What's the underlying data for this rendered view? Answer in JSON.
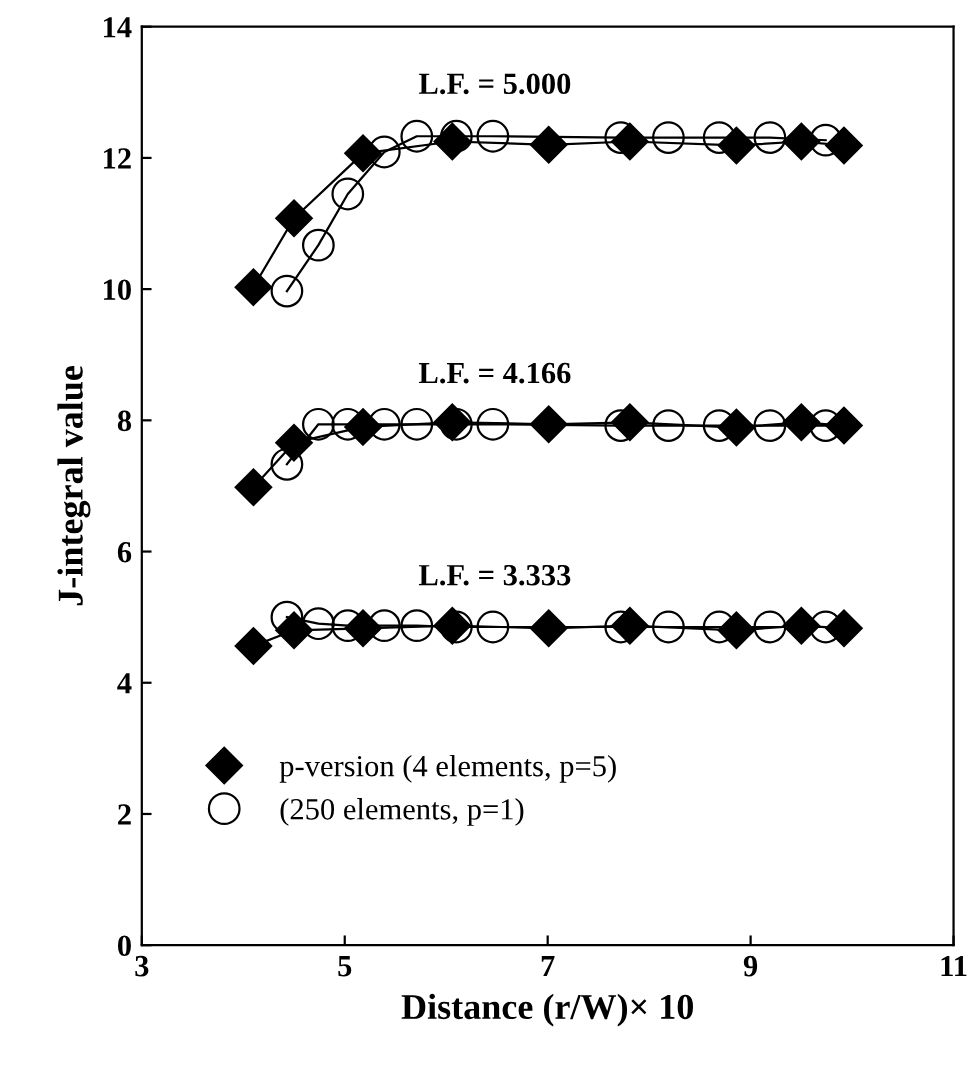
{
  "chart_data": {
    "type": "line",
    "xlabel": "Distance (r/W)× 10",
    "ylabel": "J-integral value",
    "xlim": [
      3,
      11
    ],
    "ylim": [
      0,
      14
    ],
    "xticks": [
      3,
      5,
      7,
      9,
      11
    ],
    "yticks": [
      0,
      2,
      4,
      6,
      8,
      10,
      12,
      14
    ],
    "grid": false,
    "legend": "bottom left",
    "series": [
      {
        "name": "p-version (4 elements, p=5)",
        "color": "#000000",
        "marker": "diamond",
        "x": [
          4.1,
          4.5,
          5.18,
          6.06,
          7.01,
          7.81,
          8.86,
          9.5,
          9.92
        ],
        "values": [
          10.03,
          11.08,
          12.07,
          12.25,
          12.2,
          12.25,
          12.19,
          12.25,
          12.19
        ]
      },
      {
        "name": "(250 elements, p=1)",
        "color": "#000000",
        "marker": "circle",
        "x": [
          4.43,
          4.74,
          5.03,
          5.39,
          5.71,
          6.1,
          6.46,
          7.72,
          8.19,
          8.69,
          9.19,
          9.74
        ],
        "values": [
          9.97,
          10.67,
          11.45,
          12.09,
          12.33,
          12.33,
          12.33,
          12.31,
          12.31,
          12.31,
          12.31,
          12.27
        ]
      },
      {
        "color": "#000000",
        "marker": "diamond",
        "x": [
          4.1,
          4.5,
          5.18,
          6.06,
          7.01,
          7.81,
          8.86,
          9.5,
          9.92
        ],
        "values": [
          6.98,
          7.66,
          7.9,
          7.97,
          7.94,
          7.97,
          7.89,
          7.97,
          7.92
        ]
      },
      {
        "color": "#000000",
        "marker": "circle",
        "x": [
          4.43,
          4.74,
          5.03,
          5.39,
          5.71,
          6.1,
          6.46,
          7.72,
          8.19,
          8.69,
          9.19,
          9.74
        ],
        "values": [
          7.33,
          7.94,
          7.94,
          7.94,
          7.94,
          7.94,
          7.94,
          7.92,
          7.92,
          7.92,
          7.92,
          7.92
        ]
      },
      {
        "color": "#000000",
        "marker": "diamond",
        "x": [
          4.1,
          4.5,
          5.18,
          6.06,
          7.01,
          7.81,
          8.86,
          9.5,
          9.92
        ],
        "values": [
          4.56,
          4.8,
          4.83,
          4.87,
          4.83,
          4.87,
          4.8,
          4.87,
          4.83
        ]
      },
      {
        "color": "#000000",
        "marker": "circle",
        "x": [
          4.43,
          4.74,
          5.03,
          5.39,
          5.71,
          6.1,
          6.46,
          7.72,
          8.19,
          8.69,
          9.19,
          9.74
        ],
        "values": [
          5.0,
          4.9,
          4.87,
          4.87,
          4.87,
          4.85,
          4.85,
          4.85,
          4.85,
          4.85,
          4.85,
          4.85
        ]
      }
    ],
    "annotations": [
      "L.F. = 5.000",
      "L.F. = 4.166",
      "L.F. = 3.333"
    ]
  }
}
